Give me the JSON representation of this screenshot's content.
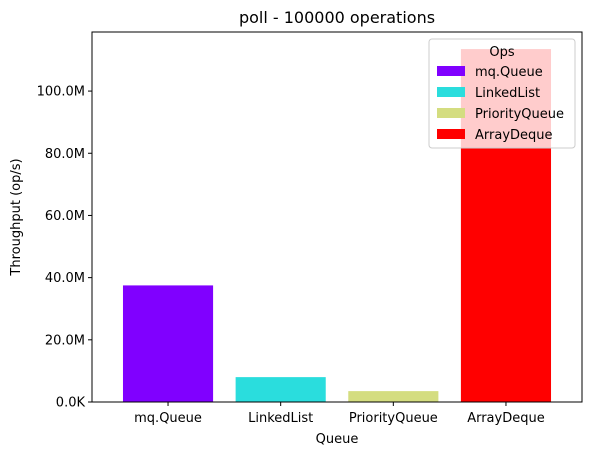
{
  "chart_data": {
    "type": "bar",
    "title": "poll - 100000 operations",
    "xlabel": "Queue",
    "ylabel": "Throughput (op/s)",
    "categories": [
      "mq.Queue",
      "LinkedList",
      "PriorityQueue",
      "ArrayDeque"
    ],
    "values": [
      37500000,
      8000000,
      3500000,
      113500000
    ],
    "colors": [
      "#8000ff",
      "#2adddd",
      "#d4dd80",
      "#ff0000"
    ],
    "ylim": [
      0,
      119000000
    ],
    "yticks": [
      0,
      20000000,
      40000000,
      60000000,
      80000000,
      100000000
    ],
    "ytick_labels": [
      "0.0K",
      "20.0M",
      "40.0M",
      "60.0M",
      "80.0M",
      "100.0M"
    ],
    "grid": false,
    "legend": {
      "title": "Ops",
      "placement": "top-right",
      "entries": [
        "mq.Queue",
        "LinkedList",
        "PriorityQueue",
        "ArrayDeque"
      ]
    }
  }
}
